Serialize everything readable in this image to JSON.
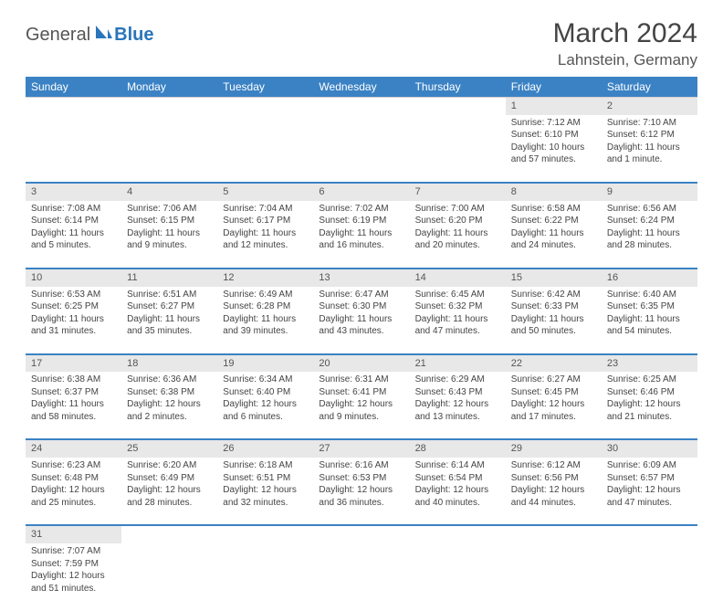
{
  "brand": {
    "part1": "General",
    "part2": "Blue"
  },
  "title": "March 2024",
  "location": "Lahnstein, Germany",
  "colors": {
    "header_bg": "#3b82c4",
    "header_fg": "#ffffff",
    "daynum_bg": "#e8e8e8",
    "row_border": "#3b82c4",
    "text": "#444444",
    "brand_gray": "#555555",
    "brand_blue": "#2a75bb"
  },
  "weekdays": [
    "Sunday",
    "Monday",
    "Tuesday",
    "Wednesday",
    "Thursday",
    "Friday",
    "Saturday"
  ],
  "weeks": [
    [
      null,
      null,
      null,
      null,
      null,
      {
        "n": "1",
        "sr": "Sunrise: 7:12 AM",
        "ss": "Sunset: 6:10 PM",
        "dl": "Daylight: 10 hours and 57 minutes."
      },
      {
        "n": "2",
        "sr": "Sunrise: 7:10 AM",
        "ss": "Sunset: 6:12 PM",
        "dl": "Daylight: 11 hours and 1 minute."
      }
    ],
    [
      {
        "n": "3",
        "sr": "Sunrise: 7:08 AM",
        "ss": "Sunset: 6:14 PM",
        "dl": "Daylight: 11 hours and 5 minutes."
      },
      {
        "n": "4",
        "sr": "Sunrise: 7:06 AM",
        "ss": "Sunset: 6:15 PM",
        "dl": "Daylight: 11 hours and 9 minutes."
      },
      {
        "n": "5",
        "sr": "Sunrise: 7:04 AM",
        "ss": "Sunset: 6:17 PM",
        "dl": "Daylight: 11 hours and 12 minutes."
      },
      {
        "n": "6",
        "sr": "Sunrise: 7:02 AM",
        "ss": "Sunset: 6:19 PM",
        "dl": "Daylight: 11 hours and 16 minutes."
      },
      {
        "n": "7",
        "sr": "Sunrise: 7:00 AM",
        "ss": "Sunset: 6:20 PM",
        "dl": "Daylight: 11 hours and 20 minutes."
      },
      {
        "n": "8",
        "sr": "Sunrise: 6:58 AM",
        "ss": "Sunset: 6:22 PM",
        "dl": "Daylight: 11 hours and 24 minutes."
      },
      {
        "n": "9",
        "sr": "Sunrise: 6:56 AM",
        "ss": "Sunset: 6:24 PM",
        "dl": "Daylight: 11 hours and 28 minutes."
      }
    ],
    [
      {
        "n": "10",
        "sr": "Sunrise: 6:53 AM",
        "ss": "Sunset: 6:25 PM",
        "dl": "Daylight: 11 hours and 31 minutes."
      },
      {
        "n": "11",
        "sr": "Sunrise: 6:51 AM",
        "ss": "Sunset: 6:27 PM",
        "dl": "Daylight: 11 hours and 35 minutes."
      },
      {
        "n": "12",
        "sr": "Sunrise: 6:49 AM",
        "ss": "Sunset: 6:28 PM",
        "dl": "Daylight: 11 hours and 39 minutes."
      },
      {
        "n": "13",
        "sr": "Sunrise: 6:47 AM",
        "ss": "Sunset: 6:30 PM",
        "dl": "Daylight: 11 hours and 43 minutes."
      },
      {
        "n": "14",
        "sr": "Sunrise: 6:45 AM",
        "ss": "Sunset: 6:32 PM",
        "dl": "Daylight: 11 hours and 47 minutes."
      },
      {
        "n": "15",
        "sr": "Sunrise: 6:42 AM",
        "ss": "Sunset: 6:33 PM",
        "dl": "Daylight: 11 hours and 50 minutes."
      },
      {
        "n": "16",
        "sr": "Sunrise: 6:40 AM",
        "ss": "Sunset: 6:35 PM",
        "dl": "Daylight: 11 hours and 54 minutes."
      }
    ],
    [
      {
        "n": "17",
        "sr": "Sunrise: 6:38 AM",
        "ss": "Sunset: 6:37 PM",
        "dl": "Daylight: 11 hours and 58 minutes."
      },
      {
        "n": "18",
        "sr": "Sunrise: 6:36 AM",
        "ss": "Sunset: 6:38 PM",
        "dl": "Daylight: 12 hours and 2 minutes."
      },
      {
        "n": "19",
        "sr": "Sunrise: 6:34 AM",
        "ss": "Sunset: 6:40 PM",
        "dl": "Daylight: 12 hours and 6 minutes."
      },
      {
        "n": "20",
        "sr": "Sunrise: 6:31 AM",
        "ss": "Sunset: 6:41 PM",
        "dl": "Daylight: 12 hours and 9 minutes."
      },
      {
        "n": "21",
        "sr": "Sunrise: 6:29 AM",
        "ss": "Sunset: 6:43 PM",
        "dl": "Daylight: 12 hours and 13 minutes."
      },
      {
        "n": "22",
        "sr": "Sunrise: 6:27 AM",
        "ss": "Sunset: 6:45 PM",
        "dl": "Daylight: 12 hours and 17 minutes."
      },
      {
        "n": "23",
        "sr": "Sunrise: 6:25 AM",
        "ss": "Sunset: 6:46 PM",
        "dl": "Daylight: 12 hours and 21 minutes."
      }
    ],
    [
      {
        "n": "24",
        "sr": "Sunrise: 6:23 AM",
        "ss": "Sunset: 6:48 PM",
        "dl": "Daylight: 12 hours and 25 minutes."
      },
      {
        "n": "25",
        "sr": "Sunrise: 6:20 AM",
        "ss": "Sunset: 6:49 PM",
        "dl": "Daylight: 12 hours and 28 minutes."
      },
      {
        "n": "26",
        "sr": "Sunrise: 6:18 AM",
        "ss": "Sunset: 6:51 PM",
        "dl": "Daylight: 12 hours and 32 minutes."
      },
      {
        "n": "27",
        "sr": "Sunrise: 6:16 AM",
        "ss": "Sunset: 6:53 PM",
        "dl": "Daylight: 12 hours and 36 minutes."
      },
      {
        "n": "28",
        "sr": "Sunrise: 6:14 AM",
        "ss": "Sunset: 6:54 PM",
        "dl": "Daylight: 12 hours and 40 minutes."
      },
      {
        "n": "29",
        "sr": "Sunrise: 6:12 AM",
        "ss": "Sunset: 6:56 PM",
        "dl": "Daylight: 12 hours and 44 minutes."
      },
      {
        "n": "30",
        "sr": "Sunrise: 6:09 AM",
        "ss": "Sunset: 6:57 PM",
        "dl": "Daylight: 12 hours and 47 minutes."
      }
    ],
    [
      {
        "n": "31",
        "sr": "Sunrise: 7:07 AM",
        "ss": "Sunset: 7:59 PM",
        "dl": "Daylight: 12 hours and 51 minutes."
      },
      null,
      null,
      null,
      null,
      null,
      null
    ]
  ]
}
